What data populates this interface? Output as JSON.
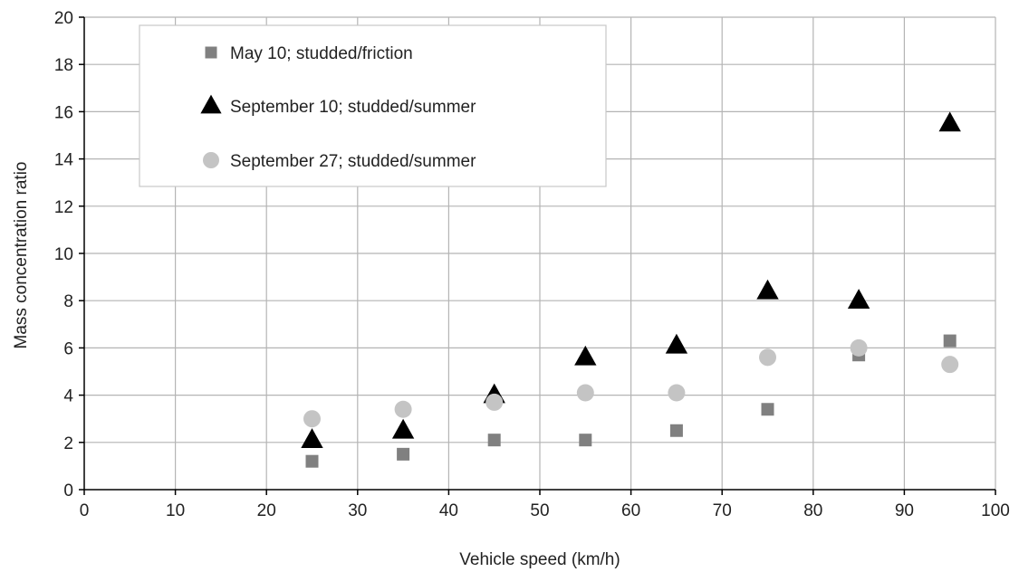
{
  "chart_data": {
    "type": "scatter",
    "xlabel": "Vehicle speed (km/h)",
    "ylabel": "Mass concentration ratio",
    "xlim": [
      0,
      100
    ],
    "ylim": [
      0,
      20
    ],
    "xticks": [
      0,
      10,
      20,
      30,
      40,
      50,
      60,
      70,
      80,
      90,
      100
    ],
    "yticks": [
      0,
      2,
      4,
      6,
      8,
      10,
      12,
      14,
      16,
      18,
      20
    ],
    "grid": true,
    "legend_position": "top-left",
    "series": [
      {
        "name": "May 10; studded/friction",
        "marker": "square",
        "color": "#808080",
        "points": [
          [
            25,
            1.2
          ],
          [
            35,
            1.5
          ],
          [
            45,
            2.1
          ],
          [
            55,
            2.1
          ],
          [
            65,
            2.5
          ],
          [
            75,
            3.4
          ],
          [
            85,
            5.7
          ],
          [
            95,
            6.3
          ]
        ]
      },
      {
        "name": "September 10; studded/summer",
        "marker": "triangle",
        "color": "#000000",
        "points": [
          [
            25,
            2.1
          ],
          [
            35,
            2.5
          ],
          [
            45,
            4.0
          ],
          [
            55,
            5.6
          ],
          [
            65,
            6.1
          ],
          [
            75,
            8.4
          ],
          [
            85,
            8.0
          ],
          [
            95,
            15.5
          ]
        ]
      },
      {
        "name": "September 27; studded/summer",
        "marker": "circle",
        "color": "#c4c4c4",
        "points": [
          [
            25,
            3.0
          ],
          [
            35,
            3.4
          ],
          [
            45,
            3.7
          ],
          [
            55,
            4.1
          ],
          [
            65,
            4.1
          ],
          [
            75,
            5.6
          ],
          [
            85,
            6.0
          ],
          [
            95,
            5.3
          ]
        ]
      }
    ]
  }
}
